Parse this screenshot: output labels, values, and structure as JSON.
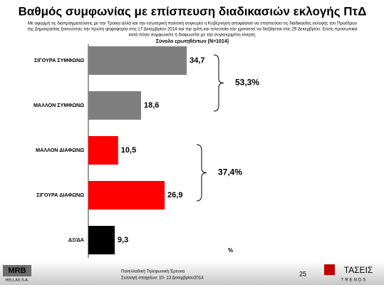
{
  "chart_data": {
    "type": "bar",
    "orientation": "horizontal",
    "title": "Βαθμός συμφωνίας με επίσπευση διαδικασιών εκλογής ΠτΔ",
    "subtitle": [
      "Με αφορμή τις διαπραγματεύσεις με την Τρόικα αλλά και την εσωτερική πολιτική συγκυρία η Κυβέρνηση αποφάσισε να επισπεύσει τις διαδικασίες εκλογής του Προέδρου",
      "της Δημοκρατίας ξεκινώντας την πρώτη ψηφοφορία στις 17 Δεκεμβρίου 2014 και την τρίτη και τελευταία εάν χρειαστεί να διεξάγεται στις 29 Δεκεμβρίου. Εσείς προσωπικά",
      "κατά πόσο συμφωνείτε ή διαφωνείτε με την συγκεκριμένη κίνηση;"
    ],
    "sample": "Σύνολο ερωτηθέντων (N=1014)",
    "categories": [
      "ΣΙΓΟΥΡΑ ΣΥΜΦΩΝΩ",
      "ΜΑΛΛΟΝ ΣΥΜΦΩΝΩ",
      "ΜΑΛΛΟΝ ΔΙΑΦΩΝΩ",
      "ΣΙΓΟΥΡΑ ΔΙΑΦΩΝΩ",
      "ΔΞ/ΔΑ"
    ],
    "values": [
      34.7,
      18.6,
      10.5,
      26.9,
      9.3
    ],
    "value_labels": [
      "34,7",
      "18,6",
      "10,5",
      "26,9",
      "9,3"
    ],
    "colors": [
      "#7f7f7f",
      "#7f7f7f",
      "#ff0000",
      "#ff0000",
      "#000000"
    ],
    "annotations": [
      {
        "value": 53.3,
        "label": "53,3%"
      },
      {
        "value": 37.4,
        "label": "37,4%"
      }
    ],
    "unit_label": "%"
  },
  "footer": {
    "survey": "Πανελλαδική Τηλεφωνική Έρευνα",
    "dates": "Συλλογή στοιχείων: 10- 13 Δεκεμβρίου2014",
    "page": "25",
    "logo_left": [
      "MRB",
      "HELLAS S.A."
    ],
    "logo_right": [
      "ΤΑΣΕΙΣ",
      "TRENDS"
    ]
  }
}
